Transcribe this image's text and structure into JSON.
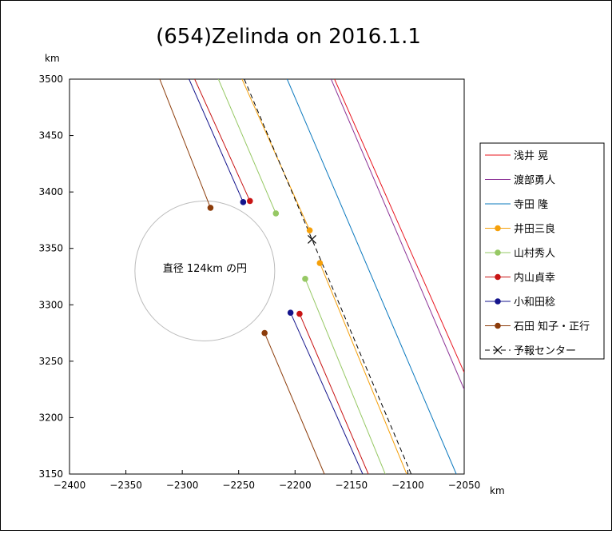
{
  "chart_data": {
    "type": "scatter",
    "title": "(654)Zelinda on 2016.1.1",
    "x_unit": "km",
    "y_unit": "km",
    "xlim": [
      -2400,
      -2050
    ],
    "ylim": [
      3150,
      3500
    ],
    "x_ticks": [
      -2400,
      -2350,
      -2300,
      -2250,
      -2200,
      -2150,
      -2100,
      -2050
    ],
    "y_ticks": [
      3150,
      3200,
      3250,
      3300,
      3350,
      3400,
      3450,
      3500
    ],
    "x_tick_labels": [
      "−2400",
      "−2350",
      "−2300",
      "−2250",
      "−2200",
      "−2150",
      "−2100",
      "−2050"
    ],
    "y_tick_labels": [
      "3150",
      "3200",
      "3250",
      "3300",
      "3350",
      "3400",
      "3450",
      "3500"
    ],
    "grid": false,
    "legend_position": "right",
    "circle": {
      "center": [
        -2280,
        3330
      ],
      "diameter": 124,
      "label": "直径 124km の円",
      "color": "#bbbbbb"
    },
    "series": [
      {
        "name": "浅井 晃",
        "color": "#e8141e",
        "marker": "none",
        "lines": [
          {
            "x": [
              -2165,
              -2050
            ],
            "y": [
              3500,
              3240
            ]
          }
        ]
      },
      {
        "name": "渡部勇人",
        "color": "#8c3296",
        "marker": "none",
        "lines": [
          {
            "x": [
              -2168,
              -2050
            ],
            "y": [
              3500,
              3225
            ]
          }
        ]
      },
      {
        "name": "寺田 隆",
        "color": "#0a78be",
        "marker": "none",
        "lines": [
          {
            "x": [
              -2207,
              -2057
            ],
            "y": [
              3500,
              3150
            ]
          }
        ]
      },
      {
        "name": "井田三良",
        "color": "#f5a00a",
        "marker": "circle",
        "lines": [
          {
            "x": [
              -2247,
              -2187
            ],
            "y": [
              3500,
              3366
            ]
          },
          {
            "x": [
              -2178,
              -2101
            ],
            "y": [
              3337,
              3150
            ]
          }
        ],
        "points": [
          {
            "x": -2187,
            "y": 3366
          },
          {
            "x": -2178,
            "y": 3337
          }
        ]
      },
      {
        "name": "山村秀人",
        "color": "#96c864",
        "marker": "circle",
        "lines": [
          {
            "x": [
              -2268,
              -2217
            ],
            "y": [
              3500,
              3381
            ]
          },
          {
            "x": [
              -2191,
              -2120
            ],
            "y": [
              3323,
              3150
            ]
          }
        ],
        "points": [
          {
            "x": -2217,
            "y": 3381
          },
          {
            "x": -2191,
            "y": 3323
          }
        ]
      },
      {
        "name": "内山貞幸",
        "color": "#c81414",
        "marker": "circle",
        "lines": [
          {
            "x": [
              -2289,
              -2240
            ],
            "y": [
              3500,
              3392
            ]
          },
          {
            "x": [
              -2196,
              -2135
            ],
            "y": [
              3292,
              3150
            ]
          }
        ],
        "points": [
          {
            "x": -2240,
            "y": 3392
          },
          {
            "x": -2196,
            "y": 3292
          }
        ]
      },
      {
        "name": "小和田稔",
        "color": "#14148c",
        "marker": "circle",
        "lines": [
          {
            "x": [
              -2294,
              -2246
            ],
            "y": [
              3500,
              3391
            ]
          },
          {
            "x": [
              -2204,
              -2140
            ],
            "y": [
              3293,
              3150
            ]
          }
        ],
        "points": [
          {
            "x": -2246,
            "y": 3391
          },
          {
            "x": -2204,
            "y": 3293
          }
        ]
      },
      {
        "name": "石田 知子・正行",
        "color": "#8c3c0a",
        "marker": "circle",
        "lines": [
          {
            "x": [
              -2320,
              -2275
            ],
            "y": [
              3500,
              3386
            ]
          },
          {
            "x": [
              -2227,
              -2174
            ],
            "y": [
              3275,
              3150
            ]
          }
        ],
        "points": [
          {
            "x": -2275,
            "y": 3386
          },
          {
            "x": -2227,
            "y": 3275
          }
        ]
      },
      {
        "name": "予報センター",
        "color": "#000000",
        "marker": "x",
        "dash": true,
        "lines": [
          {
            "x": [
              -2245,
              -2097
            ],
            "y": [
              3500,
              3150
            ]
          }
        ],
        "points": [
          {
            "x": -2185,
            "y": 3358
          }
        ]
      }
    ]
  }
}
